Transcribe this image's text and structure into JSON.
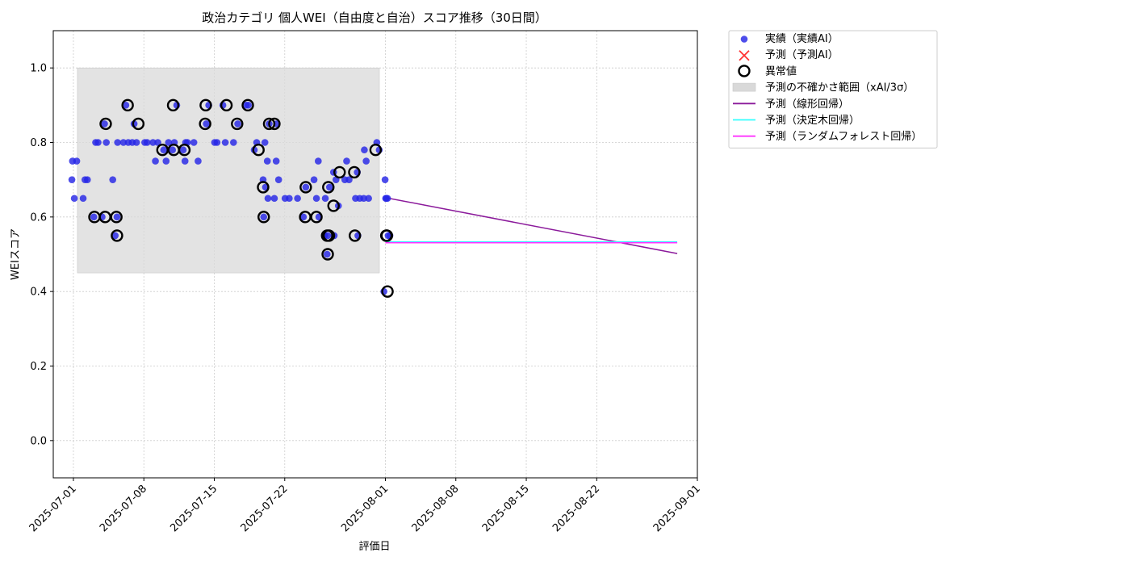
{
  "chart_data": {
    "type": "scatter",
    "title": "政治カテゴリ 個人WEI（自由度と自治）スコア推移（30日間）",
    "xlabel": "評価日",
    "ylabel": "WEIスコア",
    "xlim": [
      "2025-06-29",
      "2025-09-01"
    ],
    "ylim": [
      -0.1,
      1.1
    ],
    "yticks": [
      0.0,
      0.2,
      0.4,
      0.6,
      0.8,
      1.0
    ],
    "ytick_labels": [
      "0.0",
      "0.2",
      "0.4",
      "0.6",
      "0.8",
      "1.0"
    ],
    "xticks": [
      "2025-07-01",
      "2025-07-08",
      "2025-07-15",
      "2025-07-22",
      "2025-08-01",
      "2025-08-08",
      "2025-08-15",
      "2025-08-22",
      "2025-09-01"
    ],
    "grid": true,
    "legend_position": "outside-top-right",
    "legend": [
      {
        "label": "実績（実績AI）",
        "kind": "dot",
        "color": "#2626e6"
      },
      {
        "label": "予測（予測AI）",
        "kind": "cross",
        "color": "#ff3333"
      },
      {
        "label": "異常値",
        "kind": "ring",
        "color": "#000000"
      },
      {
        "label": "予測の不確かさ範囲（xAI/3σ）",
        "kind": "band",
        "color": "#d9d9d9"
      },
      {
        "label": "予測（線形回帰）",
        "kind": "line",
        "color": "#8b1a9b"
      },
      {
        "label": "予測（決定木回帰）",
        "kind": "line",
        "color": "#33ffff"
      },
      {
        "label": "予測（ランダムフォレスト回帰）",
        "kind": "line",
        "color": "#ff33ff"
      }
    ],
    "uncertainty_band": {
      "x": [
        "2025-07-01",
        "2025-07-31"
      ],
      "y": [
        0.45,
        1.0
      ]
    },
    "series": [
      {
        "name": "実績（実績AI）",
        "kind": "scatter",
        "color": "#2626e6",
        "points": [
          [
            "2025-07-01",
            0.7
          ],
          [
            "2025-07-01",
            0.65
          ],
          [
            "2025-07-01",
            0.75
          ],
          [
            "2025-07-01",
            0.75
          ],
          [
            "2025-07-02",
            0.7
          ],
          [
            "2025-07-02",
            0.7
          ],
          [
            "2025-07-02",
            0.65
          ],
          [
            "2025-07-03",
            0.8
          ],
          [
            "2025-07-03",
            0.8
          ],
          [
            "2025-07-03",
            0.6
          ],
          [
            "2025-07-04",
            0.8
          ],
          [
            "2025-07-04",
            0.6
          ],
          [
            "2025-07-04",
            0.85
          ],
          [
            "2025-07-05",
            0.6
          ],
          [
            "2025-07-05",
            0.7
          ],
          [
            "2025-07-05",
            0.55
          ],
          [
            "2025-07-05",
            0.8
          ],
          [
            "2025-07-06",
            0.8
          ],
          [
            "2025-07-06",
            0.9
          ],
          [
            "2025-07-06",
            0.8
          ],
          [
            "2025-07-07",
            0.85
          ],
          [
            "2025-07-07",
            0.8
          ],
          [
            "2025-07-07",
            0.8
          ],
          [
            "2025-07-08",
            0.8
          ],
          [
            "2025-07-08",
            0.8
          ],
          [
            "2025-07-09",
            0.8
          ],
          [
            "2025-07-09",
            0.75
          ],
          [
            "2025-07-09",
            0.8
          ],
          [
            "2025-07-10",
            0.78
          ],
          [
            "2025-07-10",
            0.75
          ],
          [
            "2025-07-10",
            0.8
          ],
          [
            "2025-07-11",
            0.8
          ],
          [
            "2025-07-11",
            0.9
          ],
          [
            "2025-07-11",
            0.78
          ],
          [
            "2025-07-12",
            0.75
          ],
          [
            "2025-07-12",
            0.8
          ],
          [
            "2025-07-12",
            0.78
          ],
          [
            "2025-07-12",
            0.8
          ],
          [
            "2025-07-13",
            0.75
          ],
          [
            "2025-07-13",
            0.8
          ],
          [
            "2025-07-14",
            0.85
          ],
          [
            "2025-07-14",
            0.9
          ],
          [
            "2025-07-15",
            0.8
          ],
          [
            "2025-07-15",
            0.8
          ],
          [
            "2025-07-16",
            0.9
          ],
          [
            "2025-07-16",
            0.8
          ],
          [
            "2025-07-17",
            0.85
          ],
          [
            "2025-07-17",
            0.8
          ],
          [
            "2025-07-18",
            0.9
          ],
          [
            "2025-07-18",
            0.9
          ],
          [
            "2025-07-19",
            0.78
          ],
          [
            "2025-07-19",
            0.8
          ],
          [
            "2025-07-20",
            0.85
          ],
          [
            "2025-07-20",
            0.8
          ],
          [
            "2025-07-20",
            0.75
          ],
          [
            "2025-07-20",
            0.7
          ],
          [
            "2025-07-20",
            0.68
          ],
          [
            "2025-07-20",
            0.65
          ],
          [
            "2025-07-20",
            0.6
          ],
          [
            "2025-07-21",
            0.75
          ],
          [
            "2025-07-21",
            0.7
          ],
          [
            "2025-07-21",
            0.65
          ],
          [
            "2025-07-21",
            0.85
          ],
          [
            "2025-07-22",
            0.65
          ],
          [
            "2025-07-22",
            0.65
          ],
          [
            "2025-07-23",
            0.65
          ],
          [
            "2025-07-24",
            0.6
          ],
          [
            "2025-07-24",
            0.68
          ],
          [
            "2025-07-25",
            0.75
          ],
          [
            "2025-07-25",
            0.7
          ],
          [
            "2025-07-25",
            0.65
          ],
          [
            "2025-07-25",
            0.6
          ],
          [
            "2025-07-26",
            0.55
          ],
          [
            "2025-07-26",
            0.5
          ],
          [
            "2025-07-26",
            0.68
          ],
          [
            "2025-07-26",
            0.65
          ],
          [
            "2025-07-26",
            0.55
          ],
          [
            "2025-07-27",
            0.72
          ],
          [
            "2025-07-27",
            0.7
          ],
          [
            "2025-07-27",
            0.63
          ],
          [
            "2025-07-27",
            0.55
          ],
          [
            "2025-07-28",
            0.75
          ],
          [
            "2025-07-28",
            0.7
          ],
          [
            "2025-07-28",
            0.7
          ],
          [
            "2025-07-29",
            0.72
          ],
          [
            "2025-07-29",
            0.65
          ],
          [
            "2025-07-29",
            0.65
          ],
          [
            "2025-07-29",
            0.55
          ],
          [
            "2025-07-30",
            0.65
          ],
          [
            "2025-07-30",
            0.75
          ],
          [
            "2025-07-30",
            0.65
          ],
          [
            "2025-07-30",
            0.78
          ],
          [
            "2025-07-31",
            0.8
          ],
          [
            "2025-07-31",
            0.78
          ],
          [
            "2025-08-01",
            0.7
          ],
          [
            "2025-08-01",
            0.65
          ],
          [
            "2025-08-01",
            0.55
          ],
          [
            "2025-08-01",
            0.65
          ],
          [
            "2025-08-01",
            0.55
          ],
          [
            "2025-08-01",
            0.4
          ],
          [
            "2025-08-01",
            0.65
          ]
        ]
      },
      {
        "name": "異常値",
        "kind": "ring",
        "color": "#000000",
        "points": [
          [
            "2025-07-03",
            0.6
          ],
          [
            "2025-07-04",
            0.6
          ],
          [
            "2025-07-04",
            0.85
          ],
          [
            "2025-07-05",
            0.6
          ],
          [
            "2025-07-05",
            0.55
          ],
          [
            "2025-07-06",
            0.9
          ],
          [
            "2025-07-07",
            0.85
          ],
          [
            "2025-07-10",
            0.78
          ],
          [
            "2025-07-11",
            0.9
          ],
          [
            "2025-07-11",
            0.78
          ],
          [
            "2025-07-12",
            0.78
          ],
          [
            "2025-07-14",
            0.85
          ],
          [
            "2025-07-14",
            0.9
          ],
          [
            "2025-07-16",
            0.9
          ],
          [
            "2025-07-17",
            0.85
          ],
          [
            "2025-07-18",
            0.9
          ],
          [
            "2025-07-19",
            0.78
          ],
          [
            "2025-07-20",
            0.85
          ],
          [
            "2025-07-20",
            0.68
          ],
          [
            "2025-07-20",
            0.6
          ],
          [
            "2025-07-21",
            0.85
          ],
          [
            "2025-07-24",
            0.6
          ],
          [
            "2025-07-24",
            0.68
          ],
          [
            "2025-07-25",
            0.6
          ],
          [
            "2025-07-26",
            0.55
          ],
          [
            "2025-07-26",
            0.5
          ],
          [
            "2025-07-26",
            0.68
          ],
          [
            "2025-07-26",
            0.55
          ],
          [
            "2025-07-27",
            0.72
          ],
          [
            "2025-07-27",
            0.63
          ],
          [
            "2025-07-29",
            0.72
          ],
          [
            "2025-07-29",
            0.55
          ],
          [
            "2025-07-31",
            0.78
          ],
          [
            "2025-08-01",
            0.55
          ],
          [
            "2025-08-01",
            0.55
          ],
          [
            "2025-08-01",
            0.4
          ]
        ]
      },
      {
        "name": "予測（線形回帰）",
        "kind": "line",
        "color": "#8b1a9b",
        "points": [
          [
            "2025-08-01",
            0.652
          ],
          [
            "2025-08-30",
            0.502
          ]
        ]
      },
      {
        "name": "予測（決定木回帰）",
        "kind": "line",
        "color": "#33ffff",
        "points": [
          [
            "2025-08-01",
            0.533
          ],
          [
            "2025-08-30",
            0.533
          ]
        ]
      },
      {
        "name": "予測（ランダムフォレスト回帰）",
        "kind": "line",
        "color": "#ff33ff",
        "points": [
          [
            "2025-08-01",
            0.531
          ],
          [
            "2025-08-30",
            0.531
          ]
        ]
      }
    ]
  }
}
